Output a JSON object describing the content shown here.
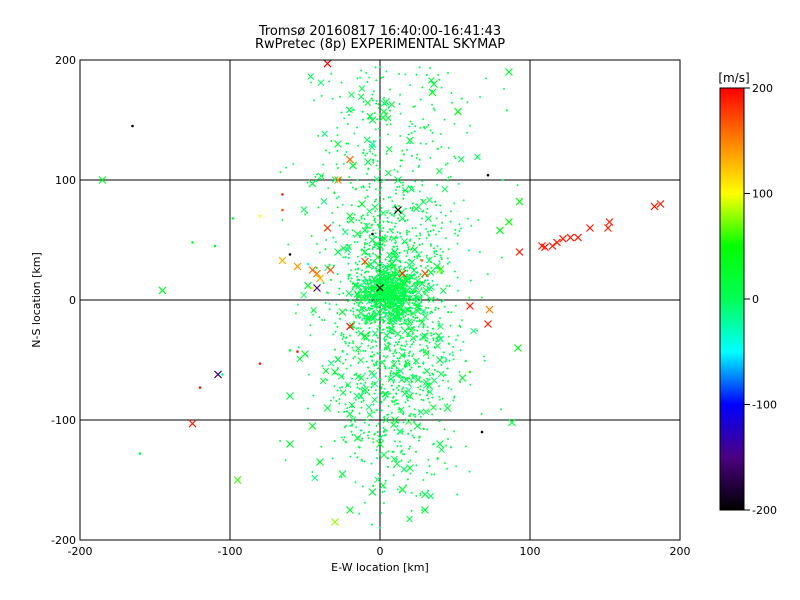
{
  "chart_data": {
    "type": "scatter",
    "title": "Tromsø 20160817 16:40:00-16:41:43",
    "subtitle": "RwPretec (8p) EXPERIMENTAL SKYMAP",
    "xlabel": "E-W location [km]",
    "ylabel": "N-S location [km]",
    "xlim": [
      -200,
      200
    ],
    "ylim": [
      -200,
      200
    ],
    "x_ticks": [
      -200,
      -100,
      0,
      100,
      200
    ],
    "y_ticks": [
      -200,
      -100,
      0,
      100,
      200
    ],
    "grid": true,
    "colorbar": {
      "label": "[m/s]",
      "range": [
        -200,
        200
      ],
      "ticks": [
        200,
        100,
        0,
        -100,
        -200
      ],
      "colors": [
        "#000000",
        "#4b0082",
        "#0000ff",
        "#00ffff",
        "#00ff55",
        "#00ff00",
        "#ffff00",
        "#ff8000",
        "#ff0000"
      ]
    },
    "series": [
      {
        "marker": "x",
        "points": [
          [
            -35,
            197,
            200
          ],
          [
            -28,
            100,
            150
          ],
          [
            -20,
            117,
            160
          ],
          [
            -18,
            112,
            20
          ],
          [
            -5,
            150,
            10
          ],
          [
            4,
            165,
            0
          ],
          [
            2,
            152,
            20
          ],
          [
            -5,
            130,
            -20
          ],
          [
            20,
            133,
            10
          ],
          [
            12,
            100,
            10
          ],
          [
            12,
            75,
            -200
          ],
          [
            -35,
            60,
            180
          ],
          [
            -20,
            70,
            20
          ],
          [
            -15,
            55,
            5
          ],
          [
            -5,
            50,
            10
          ],
          [
            0,
            45,
            10
          ],
          [
            10,
            40,
            0
          ],
          [
            -10,
            40,
            10
          ],
          [
            -33,
            25,
            170
          ],
          [
            -42,
            22,
            150
          ],
          [
            -45,
            25,
            160
          ],
          [
            -55,
            28,
            140
          ],
          [
            -65,
            33,
            130
          ],
          [
            -40,
            18,
            130
          ],
          [
            -42,
            10,
            -150
          ],
          [
            -48,
            12,
            20
          ],
          [
            -28,
            40,
            0
          ],
          [
            -10,
            32,
            170
          ],
          [
            15,
            22,
            180
          ],
          [
            18,
            16,
            20
          ],
          [
            30,
            22,
            170
          ],
          [
            40,
            25,
            70
          ],
          [
            38,
            28,
            5
          ],
          [
            10,
            10,
            20
          ],
          [
            0,
            10,
            -200
          ],
          [
            3,
            8,
            30
          ],
          [
            8,
            5,
            10
          ],
          [
            -5,
            8,
            20
          ],
          [
            15,
            5,
            0
          ],
          [
            12,
            2,
            20
          ],
          [
            -8,
            2,
            10
          ],
          [
            60,
            -5,
            190
          ],
          [
            73,
            -8,
            150
          ],
          [
            72,
            -20,
            190
          ],
          [
            92,
            -40,
            40
          ],
          [
            93,
            40,
            190
          ],
          [
            108,
            45,
            190
          ],
          [
            110,
            44,
            190
          ],
          [
            115,
            45,
            190
          ],
          [
            118,
            48,
            190
          ],
          [
            122,
            51,
            190
          ],
          [
            127,
            52,
            190
          ],
          [
            132,
            52,
            190
          ],
          [
            140,
            60,
            190
          ],
          [
            152,
            60,
            190
          ],
          [
            153,
            65,
            190
          ],
          [
            183,
            78,
            190
          ],
          [
            187,
            80,
            190
          ],
          [
            93,
            82,
            40
          ],
          [
            86,
            65,
            50
          ],
          [
            80,
            58,
            40
          ],
          [
            -145,
            8,
            30
          ],
          [
            -185,
            100,
            30
          ],
          [
            -125,
            -103,
            190
          ],
          [
            -108,
            -62,
            -160
          ],
          [
            -95,
            -150,
            60
          ],
          [
            -30,
            -185,
            80
          ],
          [
            30,
            -175,
            20
          ],
          [
            -60,
            -120,
            20
          ],
          [
            -60,
            -80,
            10
          ],
          [
            -20,
            -95,
            10
          ],
          [
            -40,
            -135,
            20
          ],
          [
            -25,
            -145,
            10
          ],
          [
            20,
            -140,
            10
          ],
          [
            30,
            -162,
            5
          ],
          [
            -20,
            -22,
            190
          ],
          [
            -10,
            -30,
            30
          ],
          [
            5,
            -5,
            20
          ],
          [
            -15,
            5,
            10
          ],
          [
            -5,
            -15,
            10
          ],
          [
            30,
            -30,
            10
          ],
          [
            -25,
            -10,
            20
          ],
          [
            40,
            -50,
            10
          ],
          [
            -30,
            -60,
            20
          ],
          [
            20,
            -80,
            10
          ],
          [
            -10,
            -75,
            10
          ],
          [
            10,
            -100,
            20
          ],
          [
            0,
            -120,
            20
          ],
          [
            -15,
            -115,
            20
          ],
          [
            25,
            -105,
            10
          ],
          [
            -35,
            -90,
            5
          ],
          [
            45,
            -90,
            10
          ],
          [
            -50,
            -45,
            20
          ],
          [
            55,
            -65,
            20
          ],
          [
            40,
            -120,
            10
          ],
          [
            -5,
            -160,
            10
          ],
          [
            15,
            -158,
            20
          ],
          [
            -45,
            -105,
            20
          ],
          [
            88,
            -102,
            10
          ],
          [
            -20,
            -175,
            20
          ],
          [
            36,
            180,
            15
          ],
          [
            35,
            173,
            30
          ],
          [
            52,
            157,
            40
          ],
          [
            86,
            190,
            30
          ],
          [
            -12,
            80,
            20
          ],
          [
            -8,
            115,
            10
          ],
          [
            -45,
            97,
            10
          ],
          [
            -28,
            130,
            20
          ]
        ]
      },
      {
        "marker": "dot",
        "points": [
          [
            -165,
            145,
            -200
          ],
          [
            72,
            104,
            -200
          ],
          [
            -65,
            88,
            190
          ],
          [
            -65,
            75,
            170
          ],
          [
            -80,
            70,
            100
          ],
          [
            -60,
            38,
            -200
          ],
          [
            -120,
            -73,
            190
          ],
          [
            -80,
            -53,
            190
          ],
          [
            -55,
            -43,
            190
          ],
          [
            -105,
            -62,
            -30
          ],
          [
            68,
            -110,
            -200
          ],
          [
            -160,
            -128,
            5
          ],
          [
            -125,
            48,
            20
          ],
          [
            -110,
            45,
            30
          ],
          [
            -98,
            68,
            20
          ],
          [
            -45,
            10,
            100
          ],
          [
            28,
            33,
            160
          ],
          [
            -60,
            -42,
            20
          ],
          [
            -48,
            30,
            -50
          ],
          [
            60,
            -60,
            60
          ],
          [
            -5,
            55,
            -200
          ]
        ]
      }
    ],
    "generated_background": {
      "description": "dense cloud of small cross-shaped markers, mostly green (near 0 m/s), centred near the origin and extending north-south",
      "count": 2600,
      "dominant_velocity": 5
    }
  }
}
